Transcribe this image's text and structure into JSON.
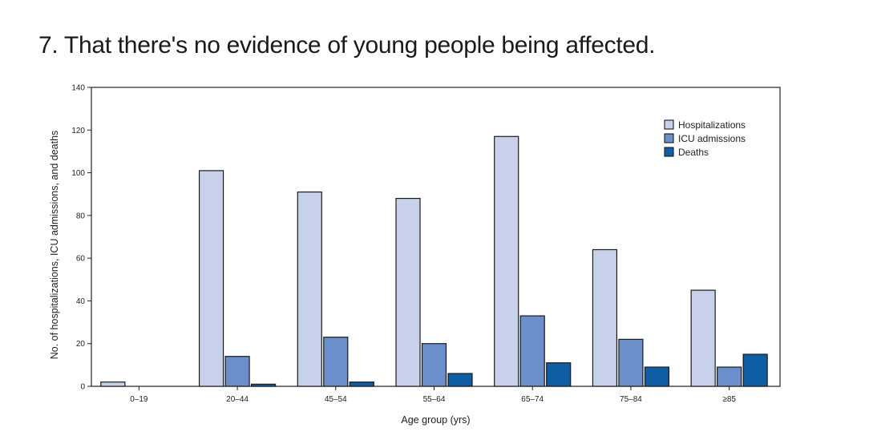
{
  "headline": "7. That there's no evidence of young people being affected.",
  "chart_data": {
    "type": "bar",
    "title": "",
    "xlabel": "Age group (yrs)",
    "ylabel": "No. of hospitalizations, ICU admissions, and deaths",
    "categories": [
      "0–19",
      "20–44",
      "45–54",
      "55–64",
      "65–74",
      "75–84",
      "≥85"
    ],
    "series": [
      {
        "name": "Hospitalizations",
        "color": "#c7d2ea",
        "values": [
          2,
          101,
          91,
          88,
          117,
          64,
          45
        ]
      },
      {
        "name": "ICU admissions",
        "color": "#6a8fcb",
        "values": [
          0,
          14,
          23,
          20,
          33,
          22,
          9
        ]
      },
      {
        "name": "Deaths",
        "color": "#0f5da3",
        "values": [
          0,
          1,
          2,
          6,
          11,
          9,
          15
        ]
      }
    ],
    "ylim": [
      0,
      140
    ],
    "yticks": [
      0,
      20,
      40,
      60,
      80,
      100,
      120,
      140
    ],
    "grid": false,
    "legend_position": "top-right"
  }
}
